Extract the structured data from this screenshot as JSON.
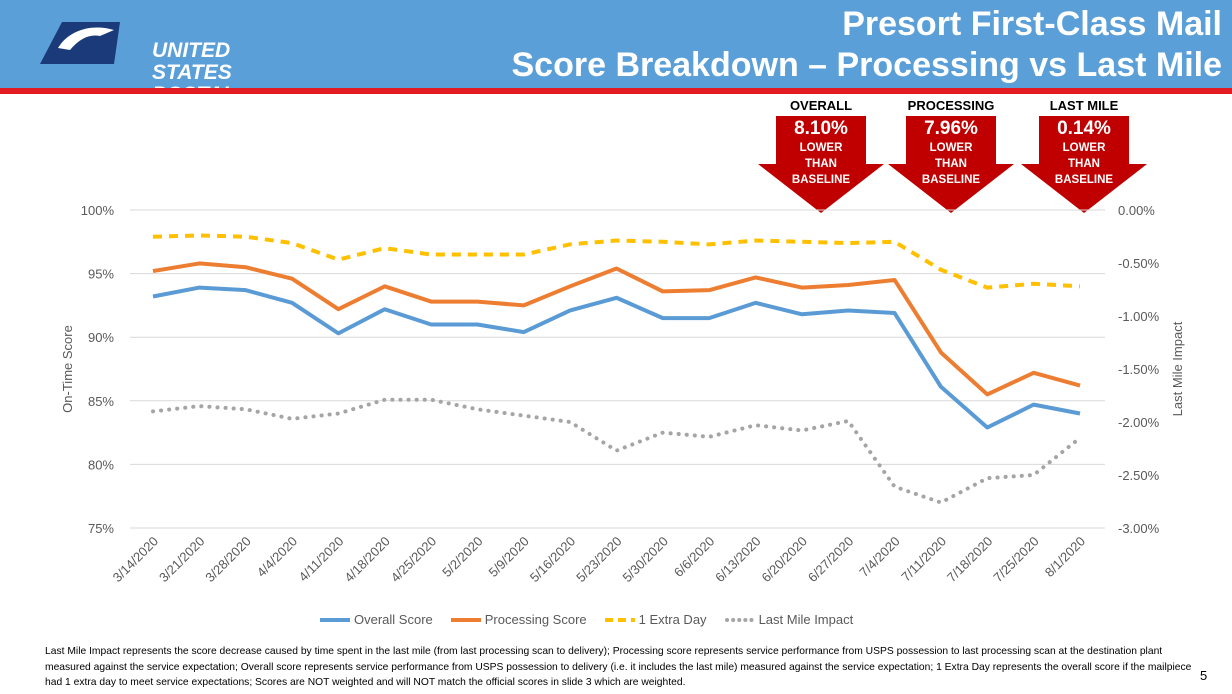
{
  "header": {
    "logo_text_line1": "UNITED STATES",
    "logo_text_line2": "POSTAL SERVICE ®",
    "title_line1": "Presort First-Class Mail",
    "title_line2": "Score Breakdown – Processing vs Last Mile"
  },
  "kpis": [
    {
      "label": "OVERALL",
      "value": "8.10%",
      "sub": "LOWER\nTHAN\nBASELINE"
    },
    {
      "label": "PROCESSING",
      "value": "7.96%",
      "sub": "LOWER\nTHAN\nBASELINE"
    },
    {
      "label": "LAST MILE",
      "value": "0.14%",
      "sub": "LOWER\nTHAN\nBASELINE"
    }
  ],
  "colors": {
    "header": "#5b9fd8",
    "red": "#c00000",
    "overall": "#5b9bd5",
    "processing": "#ed7d31",
    "extra": "#ffc000",
    "lastmile": "#a5a5a5"
  },
  "chart_data": {
    "type": "line",
    "categories": [
      "3/14/2020",
      "3/21/2020",
      "3/28/2020",
      "4/4/2020",
      "4/11/2020",
      "4/18/2020",
      "4/25/2020",
      "5/2/2020",
      "5/9/2020",
      "5/16/2020",
      "5/23/2020",
      "5/30/2020",
      "6/6/2020",
      "6/13/2020",
      "6/20/2020",
      "6/27/2020",
      "7/4/2020",
      "7/11/2020",
      "7/18/2020",
      "7/25/2020",
      "8/1/2020"
    ],
    "ylabel": "On-Time Score",
    "y2label": "Last Mile Impact",
    "ylim": [
      75,
      100
    ],
    "y2lim": [
      -3,
      0
    ],
    "yticks": [
      "75%",
      "80%",
      "85%",
      "90%",
      "95%",
      "100%"
    ],
    "y2ticks": [
      "-3.00%",
      "-2.50%",
      "-2.00%",
      "-1.50%",
      "-1.00%",
      "-0.50%",
      "0.00%"
    ],
    "grid": true,
    "legend": "bottom",
    "series": [
      {
        "name": "Overall Score",
        "axis": "left",
        "values": [
          93.2,
          93.9,
          93.7,
          92.7,
          90.3,
          92.2,
          91.0,
          91.0,
          90.4,
          92.1,
          93.1,
          91.5,
          91.5,
          92.7,
          91.8,
          92.1,
          91.9,
          86.1,
          82.9,
          84.7,
          84.0
        ]
      },
      {
        "name": "Processing Score",
        "axis": "left",
        "values": [
          95.2,
          95.8,
          95.5,
          94.6,
          92.2,
          94.0,
          92.8,
          92.8,
          92.5,
          94.0,
          95.4,
          93.6,
          93.7,
          94.7,
          93.9,
          94.1,
          94.5,
          88.8,
          85.5,
          87.2,
          86.2
        ]
      },
      {
        "name": "1 Extra Day",
        "axis": "left",
        "values": [
          97.9,
          98.0,
          97.9,
          97.4,
          96.1,
          97.0,
          96.5,
          96.5,
          96.5,
          97.3,
          97.6,
          97.5,
          97.3,
          97.6,
          97.5,
          97.4,
          97.5,
          95.3,
          93.9,
          94.2,
          94.0
        ]
      },
      {
        "name": "Last Mile Impact",
        "axis": "right",
        "values": [
          -1.9,
          -1.85,
          -1.88,
          -1.97,
          -1.92,
          -1.79,
          -1.79,
          -1.88,
          -1.94,
          -2.0,
          -2.27,
          -2.1,
          -2.14,
          -2.03,
          -2.08,
          -1.99,
          -2.61,
          -2.76,
          -2.53,
          -2.5,
          -2.15
        ]
      }
    ]
  },
  "footnote": "Last Mile Impact represents the score decrease caused by time spent in the last mile (from last processing scan to delivery); Processing score represents service performance from USPS possession to last processing scan at the destination plant measured against the service expectation; Overall score represents service performance from USPS possession to delivery (i.e. it includes the last mile) measured against the service expectation; 1 Extra Day represents the overall score if the mailpiece had 1 extra day to meet service expectations; Scores are NOT weighted and will NOT match the official scores in slide 3 which are weighted.",
  "page_number": "5"
}
